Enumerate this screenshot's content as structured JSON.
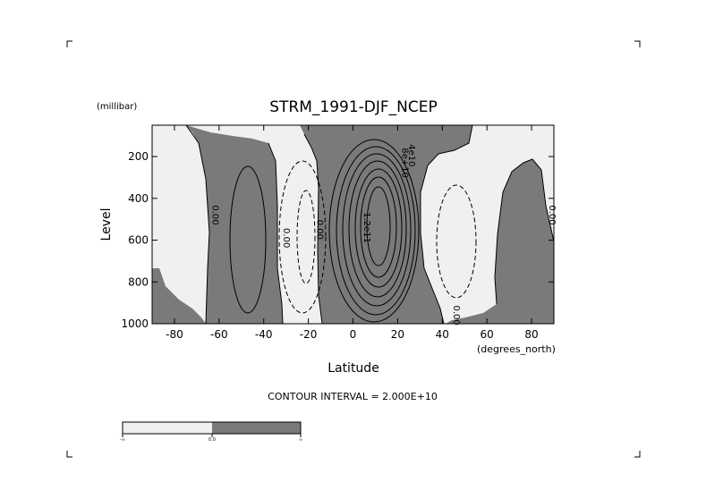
{
  "chart_data": {
    "type": "contour",
    "title": "STRM_1991-DJF_NCEP",
    "xlabel": "Latitude",
    "ylabel": "Level",
    "x_units": "(degrees_north)",
    "y_units": "(millibar)",
    "xlim": [
      -90,
      90
    ],
    "ylim": [
      1000,
      50
    ],
    "y_inverted": true,
    "xticks": [
      -80,
      -60,
      -40,
      -20,
      0,
      20,
      40,
      60,
      80
    ],
    "yticks": [
      200,
      400,
      600,
      800,
      1000
    ],
    "footer": "CONTOUR INTERVAL = 2.000E+10",
    "fill_colors": {
      "negative": "#f0f0f0",
      "positive": "#7a7a7a"
    },
    "contour_labels": [
      {
        "text": "0.00",
        "x": -63,
        "y": 480
      },
      {
        "text": "0.00",
        "x": -31,
        "y": 590
      },
      {
        "text": "0.00",
        "x": -16,
        "y": 550
      },
      {
        "text": "1.2e11",
        "x": 5,
        "y": 540
      },
      {
        "text": "8e+10",
        "x": 22,
        "y": 230
      },
      {
        "text": "4e10",
        "x": 25,
        "y": 195
      },
      {
        "text": "0.00",
        "x": 45,
        "y": 960
      },
      {
        "text": "0.00",
        "x": 88,
        "y": 480
      }
    ],
    "colorbar": {
      "labels": [
        "-∞",
        "0.0",
        "∞"
      ]
    }
  }
}
